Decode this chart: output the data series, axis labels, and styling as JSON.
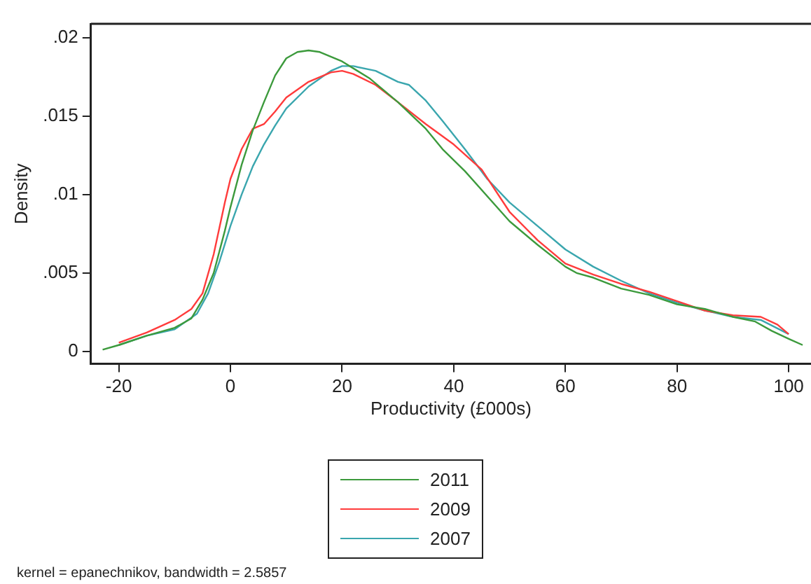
{
  "chart_data": {
    "type": "line",
    "xlabel": "Productivity (£000s)",
    "ylabel": "Density",
    "xlim": [
      -25,
      104
    ],
    "ylim": [
      -0.0008,
      0.0209
    ],
    "xticks": [
      -20,
      0,
      20,
      40,
      60,
      80,
      100
    ],
    "yticks": [
      0,
      {
        "value": 0.005,
        "label": ".005"
      },
      {
        "value": 0.01,
        "label": ".01"
      },
      {
        "value": 0.015,
        "label": ".015"
      },
      {
        "value": 0.02,
        "label": ".02"
      }
    ],
    "grid": false,
    "legend": "bottom",
    "marker": "none",
    "line_style": "solid",
    "annotations": [
      "kernel = epanechnikov, bandwidth = 2.5857"
    ],
    "series": [
      {
        "name": "2011",
        "color": "#3c9a3c",
        "x": [
          -22.9,
          -20,
          -15,
          -10,
          -7,
          -5,
          -3,
          -1,
          0,
          2,
          4,
          6,
          8,
          10,
          12,
          14,
          16,
          20,
          25,
          30,
          35,
          38,
          42,
          50,
          55,
          60,
          62,
          65,
          70,
          75,
          80,
          85,
          90,
          94,
          97,
          100,
          102.5
        ],
        "values": [
          0.0001,
          0.0004,
          0.001,
          0.0015,
          0.0021,
          0.0033,
          0.005,
          0.0077,
          0.0092,
          0.0119,
          0.0141,
          0.0159,
          0.0176,
          0.0187,
          0.0191,
          0.0192,
          0.0191,
          0.0185,
          0.0174,
          0.0159,
          0.0142,
          0.0129,
          0.0115,
          0.0083,
          0.0068,
          0.0054,
          0.005,
          0.0047,
          0.004,
          0.0036,
          0.003,
          0.0027,
          0.0022,
          0.0019,
          0.0013,
          0.0008,
          0.0004
        ]
      },
      {
        "name": "2009",
        "color": "#ff3b3b",
        "x": [
          -20,
          -15,
          -10,
          -7,
          -5,
          -3,
          -1,
          0,
          2,
          4,
          6,
          8,
          10,
          14,
          18,
          20,
          22,
          26,
          30,
          35,
          40,
          45,
          50,
          55,
          60,
          65,
          70,
          75,
          80,
          85,
          90,
          95,
          98,
          100
        ],
        "values": [
          0.00055,
          0.0012,
          0.002,
          0.0027,
          0.0037,
          0.0062,
          0.0095,
          0.011,
          0.0129,
          0.0142,
          0.0145,
          0.0153,
          0.0162,
          0.0172,
          0.0178,
          0.0179,
          0.0177,
          0.017,
          0.0159,
          0.0145,
          0.0132,
          0.0116,
          0.0089,
          0.0071,
          0.0056,
          0.0049,
          0.0043,
          0.0038,
          0.0032,
          0.0026,
          0.0023,
          0.0022,
          0.0017,
          0.0011
        ]
      },
      {
        "name": "2007",
        "color": "#3aa6ae",
        "x": [
          -20,
          -15,
          -10,
          -6,
          -4,
          -2,
          0,
          2,
          4,
          6,
          8,
          10,
          14,
          18,
          20,
          22,
          26,
          30,
          32,
          35,
          38,
          42,
          46,
          50,
          55,
          60,
          65,
          70,
          75,
          80,
          85,
          90,
          95,
          100
        ],
        "values": [
          0.0004,
          0.001,
          0.0014,
          0.0024,
          0.0037,
          0.0057,
          0.008,
          0.01,
          0.0118,
          0.0132,
          0.0144,
          0.0155,
          0.0169,
          0.0179,
          0.0182,
          0.0182,
          0.0179,
          0.0172,
          0.017,
          0.016,
          0.0147,
          0.0129,
          0.011,
          0.0095,
          0.008,
          0.0065,
          0.0054,
          0.0045,
          0.0037,
          0.0031,
          0.0026,
          0.0022,
          0.002,
          0.0011
        ]
      }
    ]
  }
}
